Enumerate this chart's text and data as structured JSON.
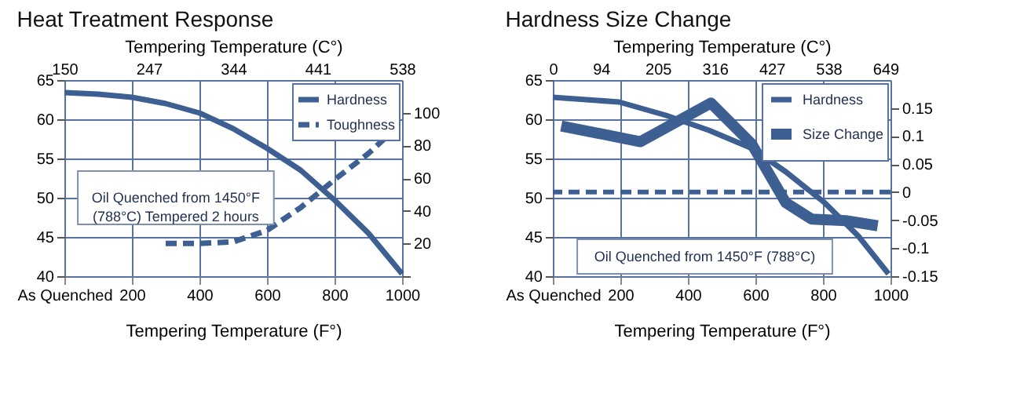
{
  "chart_data": [
    {
      "type": "line",
      "title": "Heat Treatment Response",
      "xlabel": "Tempering Temperature (F°)",
      "x2label": "Tempering Temperature (C°)",
      "xlim": [
        0,
        1000
      ],
      "xticks": [
        {
          "value": 0,
          "label": "As Quenched"
        },
        200,
        400,
        600,
        800,
        1000
      ],
      "x2lim": [
        150,
        538
      ],
      "x2ticks": [
        150,
        247,
        344,
        441,
        538
      ],
      "ylim": [
        40,
        65
      ],
      "yticks": [
        40,
        45,
        50,
        55,
        60,
        65
      ],
      "y2lim": [
        0,
        120
      ],
      "y2ticks": [
        {
          "value": 0,
          "label": null
        },
        20,
        40,
        60,
        80,
        100
      ],
      "grid": true,
      "legend": "top right",
      "annotations": [
        "Oil Quenched from 1450°F\n(788°C) Tempered 2 hours"
      ],
      "series": [
        {
          "name": "Hardness",
          "color": "#3d5f92",
          "x": [
            0,
            100,
            200,
            300,
            400,
            500,
            600,
            700,
            800,
            900,
            1000
          ],
          "values": [
            63.4,
            63.2,
            62.8,
            62.0,
            60.8,
            58.8,
            56.3,
            53.5,
            49.7,
            45.5,
            40.3
          ]
        },
        {
          "name": "Toughness",
          "color": "#3d5f92",
          "axis": "y2",
          "line_style": "dashed",
          "x": [
            300,
            400,
            500,
            600,
            700,
            800,
            900,
            1000
          ],
          "values": [
            20,
            20,
            21,
            28,
            42,
            59,
            75,
            94
          ]
        }
      ]
    },
    {
      "type": "line",
      "title": "Hardness Size Change",
      "xlabel": "Tempering Temperature (F°)",
      "x2label": "Tempering Temperature (C°)",
      "xlim": [
        0,
        1000
      ],
      "xticks": [
        {
          "value": 0,
          "label": "As Quenched"
        },
        200,
        400,
        600,
        800,
        1000
      ],
      "x2lim": [
        0,
        659
      ],
      "x2ticks": [
        0,
        94,
        205,
        316,
        427,
        538,
        649
      ],
      "ylim": [
        40,
        65
      ],
      "yticks": [
        40,
        45,
        50,
        55,
        60,
        65
      ],
      "y2lim": [
        -0.15,
        0.2
      ],
      "y2ticks": [
        -0.15,
        -0.1,
        -0.05,
        0,
        0.05,
        0.1,
        0.15
      ],
      "grid": true,
      "legend": "top right",
      "annotations": [
        "Oil Quenched from 1450°F (788°C)"
      ],
      "ref_lines": [
        {
          "axis": "y2",
          "value": 0,
          "color": "#3d5f92",
          "line_style": "dashed"
        }
      ],
      "series": [
        {
          "name": "Hardness",
          "color": "#3d5f92",
          "x": [
            0,
            196,
            335,
            462,
            589,
            690,
            804,
            905,
            994
          ],
          "values": [
            62.8,
            62.2,
            60.5,
            58.6,
            56.3,
            53.3,
            49.4,
            45.1,
            40.3
          ]
        },
        {
          "name": "Size Change",
          "color": "#3d5f92",
          "axis": "y2",
          "x": [
            25,
            259,
            468,
            589,
            690,
            766,
            867,
            962
          ],
          "values": [
            0.118,
            0.09,
            0.159,
            0.086,
            -0.019,
            -0.048,
            -0.051,
            -0.06
          ]
        }
      ]
    }
  ]
}
